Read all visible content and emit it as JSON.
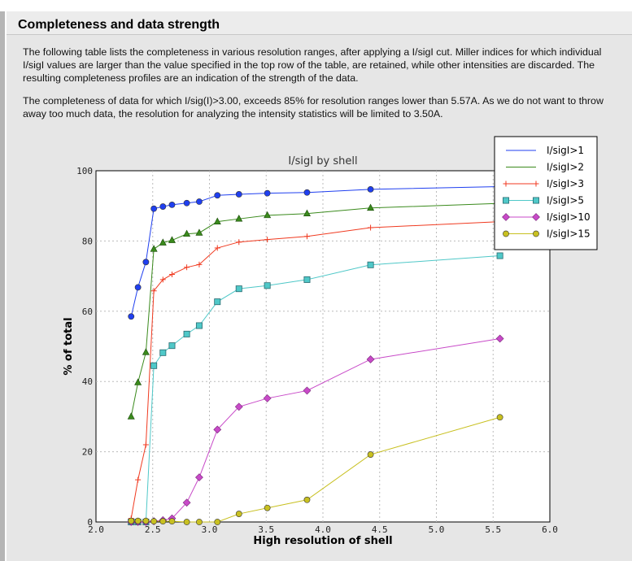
{
  "section": {
    "title": "Completeness and data strength",
    "paragraph1": "The following table lists the completeness in various resolution ranges, after applying a I/sigI cut. Miller indices for which individual I/sigI values are larger than the value specified in the top row of the table, are retained, while other intensities are discarded. The resulting completeness profiles are an indication of the strength of the data.",
    "paragraph2": "The completeness of data for which I/sig(I)>3.00, exceeds  85% for resolution ranges lower than 5.57A. As we do not want to throw away too much data, the resolution for analyzing the intensity statistics will be limited to 3.50A."
  },
  "chart_data": {
    "type": "line",
    "title": "I/sigI by shell",
    "xlabel": "High resolution of shell",
    "ylabel": "% of total",
    "xlim": [
      2.0,
      6.0
    ],
    "ylim": [
      0,
      100
    ],
    "xticks": [
      "2.0",
      "2.5",
      "3.0",
      "3.5",
      "4.0",
      "4.5",
      "5.0",
      "5.5",
      "6.0"
    ],
    "yticks": [
      "0",
      "20",
      "40",
      "60",
      "80",
      "100"
    ],
    "grid": true,
    "legend_position": "top-right",
    "x": [
      2.31,
      2.37,
      2.44,
      2.51,
      2.59,
      2.67,
      2.8,
      2.91,
      3.07,
      3.26,
      3.51,
      3.86,
      4.42,
      5.56
    ],
    "series": [
      {
        "name": "I/sigI>1",
        "color": "#1f3ff0",
        "marker": "circle",
        "legend_marker": "none",
        "values": [
          58.5,
          66.8,
          74,
          89.2,
          89.8,
          90.3,
          90.8,
          91.2,
          93,
          93.3,
          93.6,
          93.8,
          94.7,
          95.5
        ]
      },
      {
        "name": "I/sigI>2",
        "color": "#3a8a1c",
        "marker": "triangle",
        "legend_marker": "none",
        "values": [
          30,
          39.7,
          48.3,
          77.7,
          79.5,
          80.2,
          82,
          82.3,
          85.5,
          86.3,
          87.3,
          87.8,
          89.4,
          90.7
        ]
      },
      {
        "name": "I/sigI>3",
        "color": "#f03a20",
        "marker": "plus",
        "legend_marker": "plus",
        "values": [
          1,
          12,
          22,
          65.8,
          69,
          70.5,
          72.5,
          73.3,
          78,
          79.7,
          80.4,
          81.3,
          83.8,
          85.5
        ]
      },
      {
        "name": "I/sigI>5",
        "color": "#4fc8c8",
        "marker": "square",
        "legend_marker": "square",
        "values": [
          0,
          0,
          0,
          44.5,
          48.2,
          50.2,
          53.5,
          55.9,
          62.7,
          66.4,
          67.3,
          69,
          73.2,
          75.8
        ]
      },
      {
        "name": "I/sigI>10",
        "color": "#c84ac8",
        "marker": "diamond",
        "legend_marker": "diamond",
        "values": [
          0,
          0,
          0,
          0.2,
          0.5,
          1.0,
          5.5,
          12.7,
          26.3,
          32.8,
          35.2,
          37.4,
          46.3,
          52.2
        ]
      },
      {
        "name": "I/sigI>15",
        "color": "#c8c020",
        "marker": "circle",
        "legend_marker": "circle",
        "values": [
          0.3,
          0.3,
          0.3,
          0.2,
          0.2,
          0.2,
          0,
          0,
          0,
          2.3,
          4,
          6.3,
          19.2,
          29.8
        ]
      }
    ]
  }
}
